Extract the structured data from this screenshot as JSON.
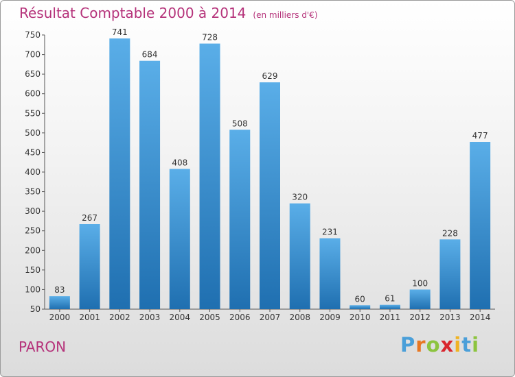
{
  "header": {
    "title": "Résultat Comptable 2000 à 2014",
    "subtitle": "(en milliers d'€)"
  },
  "footer": {
    "place": "PARON",
    "logo": [
      "P",
      "r",
      "o",
      "x",
      "i",
      "t",
      "i"
    ]
  },
  "colors": {
    "accent": "#b5327a",
    "bar_top": "#5aaee8",
    "bar_bottom": "#1f6fb0",
    "logo": [
      "#4a9fd9",
      "#e87722",
      "#8cc43f",
      "#d9262e",
      "#f0b323",
      "#4a9fd9",
      "#8cc43f"
    ]
  },
  "chart_data": {
    "type": "bar",
    "title": "Résultat Comptable 2000 à 2014",
    "categories": [
      "2000",
      "2001",
      "2002",
      "2003",
      "2004",
      "2005",
      "2006",
      "2007",
      "2008",
      "2009",
      "2010",
      "2011",
      "2012",
      "2013",
      "2014"
    ],
    "values": [
      83,
      267,
      741,
      684,
      408,
      728,
      508,
      629,
      320,
      231,
      60,
      61,
      100,
      228,
      477
    ],
    "ylim": [
      50,
      750
    ],
    "yticks": [
      50,
      100,
      150,
      200,
      250,
      300,
      350,
      400,
      450,
      500,
      550,
      600,
      650,
      700,
      750
    ],
    "grid": false
  }
}
